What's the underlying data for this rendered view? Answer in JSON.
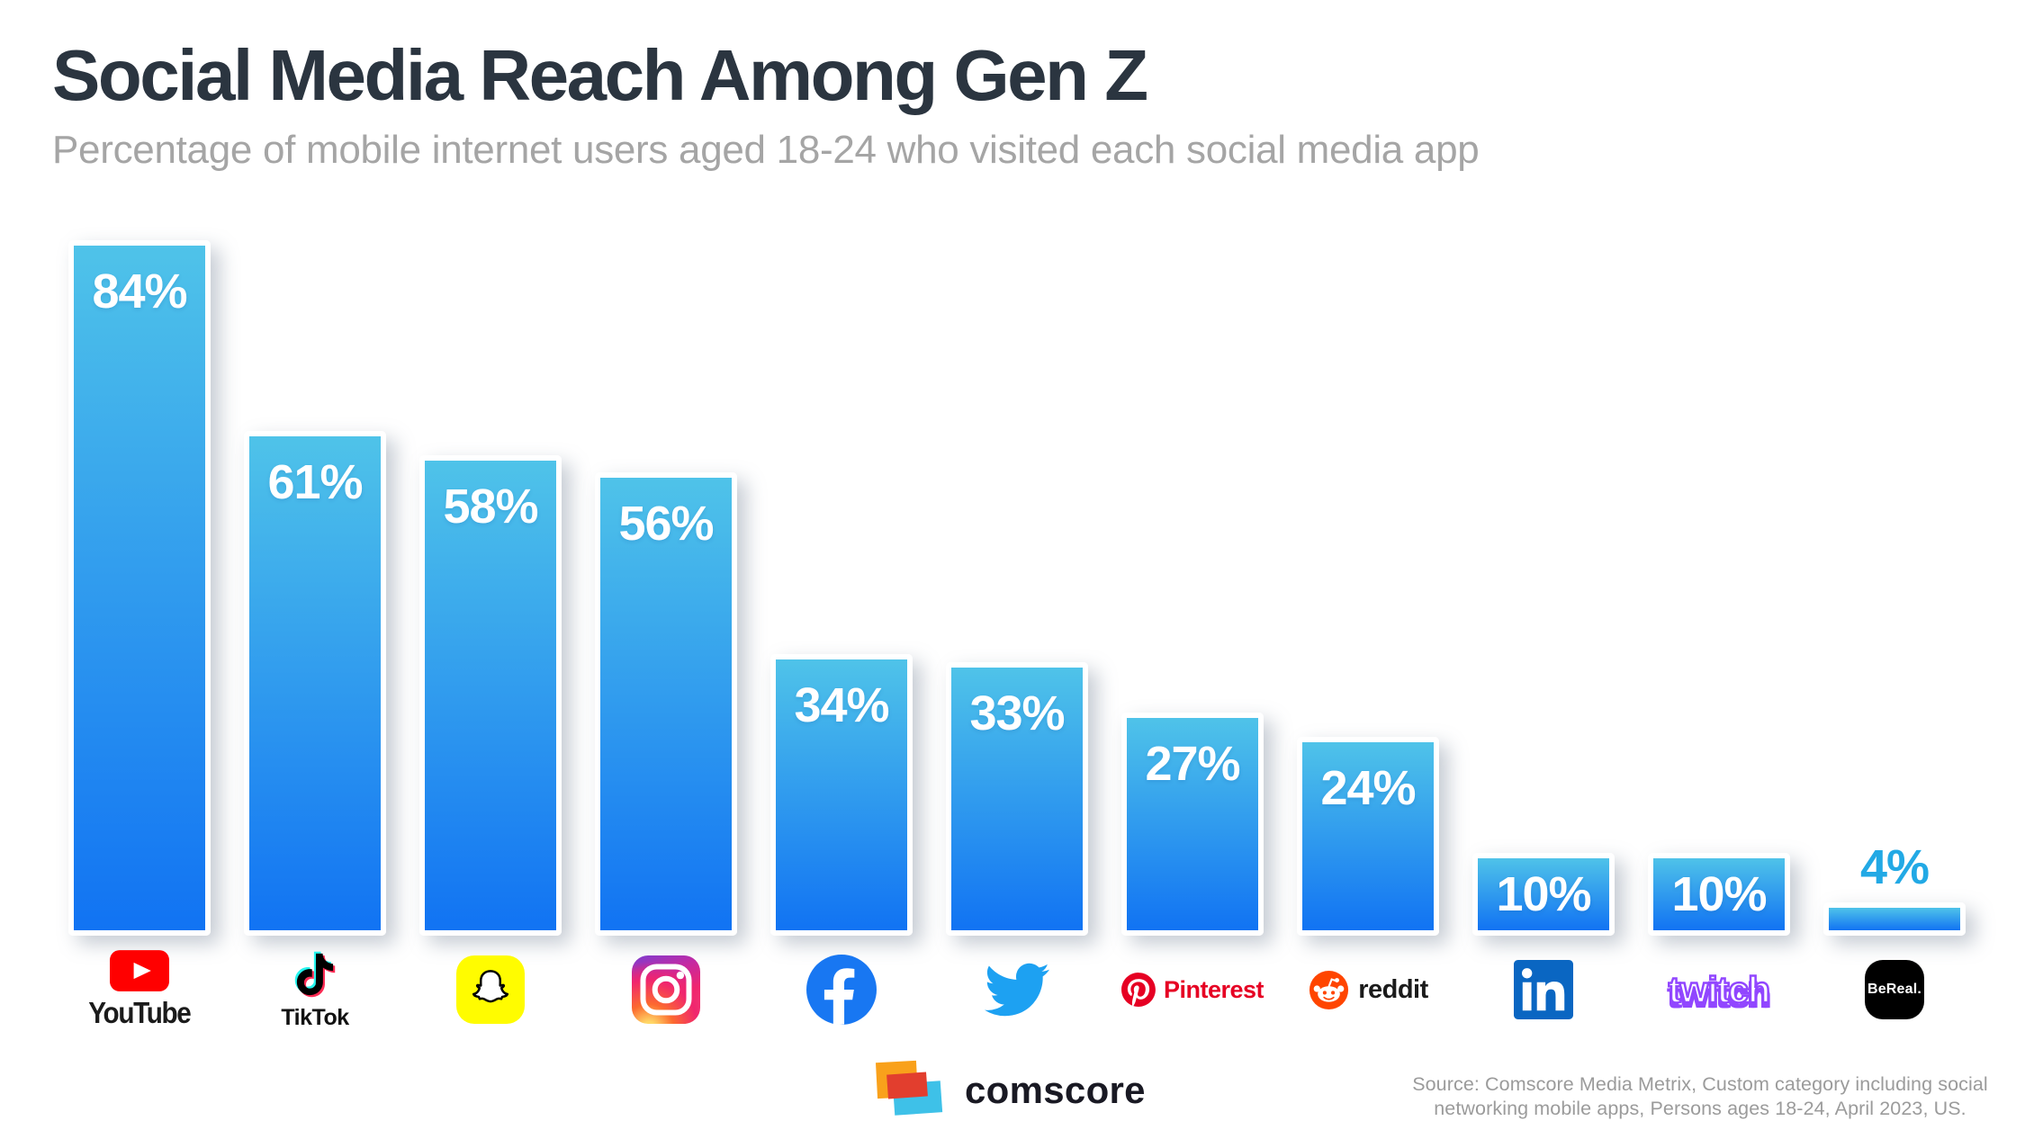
{
  "page": {
    "background": "#FFFFFF"
  },
  "header": {
    "title": "Social Media Reach Among Gen Z",
    "subtitle": "Percentage of mobile internet users aged 18-24 who visited each social media app",
    "title_color": "#2B3540",
    "subtitle_color": "#A5A5A5"
  },
  "chart_data": {
    "type": "bar",
    "title": "Social Media Reach Among Gen Z",
    "subtitle": "Percentage of mobile internet users aged 18-24 who visited each social media app",
    "unit": "%",
    "ylim": [
      0,
      100
    ],
    "grid": false,
    "axes_visible": false,
    "legend": "none",
    "bar_gradient_top": "#4FC3E9",
    "bar_gradient_bottom": "#1173F3",
    "value_label_color": "#FFFFFF",
    "outside_label_color": "#22A9E5",
    "categories": [
      "YouTube",
      "TikTok",
      "Snapchat",
      "Instagram",
      "Facebook",
      "Twitter",
      "Pinterest",
      "Reddit",
      "LinkedIn",
      "Twitch",
      "BeReal"
    ],
    "values": [
      84,
      61,
      58,
      56,
      34,
      33,
      27,
      24,
      10,
      10,
      4
    ],
    "platforms": [
      {
        "id": "youtube",
        "label": "YouTube",
        "value": 84,
        "value_label": "84%",
        "brand_color": "#FF0000",
        "icon": "youtube-icon"
      },
      {
        "id": "tiktok",
        "label": "TikTok",
        "value": 61,
        "value_label": "61%",
        "brand_color": "#000000",
        "icon": "tiktok-icon"
      },
      {
        "id": "snapchat",
        "label": "Snapchat",
        "value": 58,
        "value_label": "58%",
        "brand_color": "#FFFC00",
        "icon": "snapchat-icon"
      },
      {
        "id": "instagram",
        "label": "Instagram",
        "value": 56,
        "value_label": "56%",
        "brand_color": "#E1306C",
        "icon": "instagram-icon"
      },
      {
        "id": "facebook",
        "label": "Facebook",
        "value": 34,
        "value_label": "34%",
        "brand_color": "#1877F2",
        "icon": "facebook-icon"
      },
      {
        "id": "twitter",
        "label": "Twitter",
        "value": 33,
        "value_label": "33%",
        "brand_color": "#1DA1F2",
        "icon": "twitter-icon"
      },
      {
        "id": "pinterest",
        "label": "Pinterest",
        "value": 27,
        "value_label": "27%",
        "brand_color": "#E60023",
        "icon": "pinterest-icon"
      },
      {
        "id": "reddit",
        "label": "reddit",
        "value": 24,
        "value_label": "24%",
        "brand_color": "#FF4500",
        "icon": "reddit-icon"
      },
      {
        "id": "linkedin",
        "label": "LinkedIn",
        "value": 10,
        "value_label": "10%",
        "brand_color": "#0A66C2",
        "icon": "linkedin-icon"
      },
      {
        "id": "twitch",
        "label": "twitch",
        "value": 10,
        "value_label": "10%",
        "brand_color": "#9146FF",
        "icon": "twitch-icon"
      },
      {
        "id": "bereal",
        "label": "BeReal.",
        "value": 4,
        "value_label": "4%",
        "brand_color": "#000000",
        "icon": "bereal-icon"
      }
    ]
  },
  "footer": {
    "brand_wordmark": "comscore",
    "brand_colors": {
      "orange": "#F9A11B",
      "red": "#E23E2E",
      "blue": "#3EC1E8",
      "text": "#191923"
    },
    "source_lines": [
      "Source: Comscore Media Metrix, Custom category including social",
      "networking mobile apps, Persons ages 18-24, April 2023, US."
    ]
  }
}
